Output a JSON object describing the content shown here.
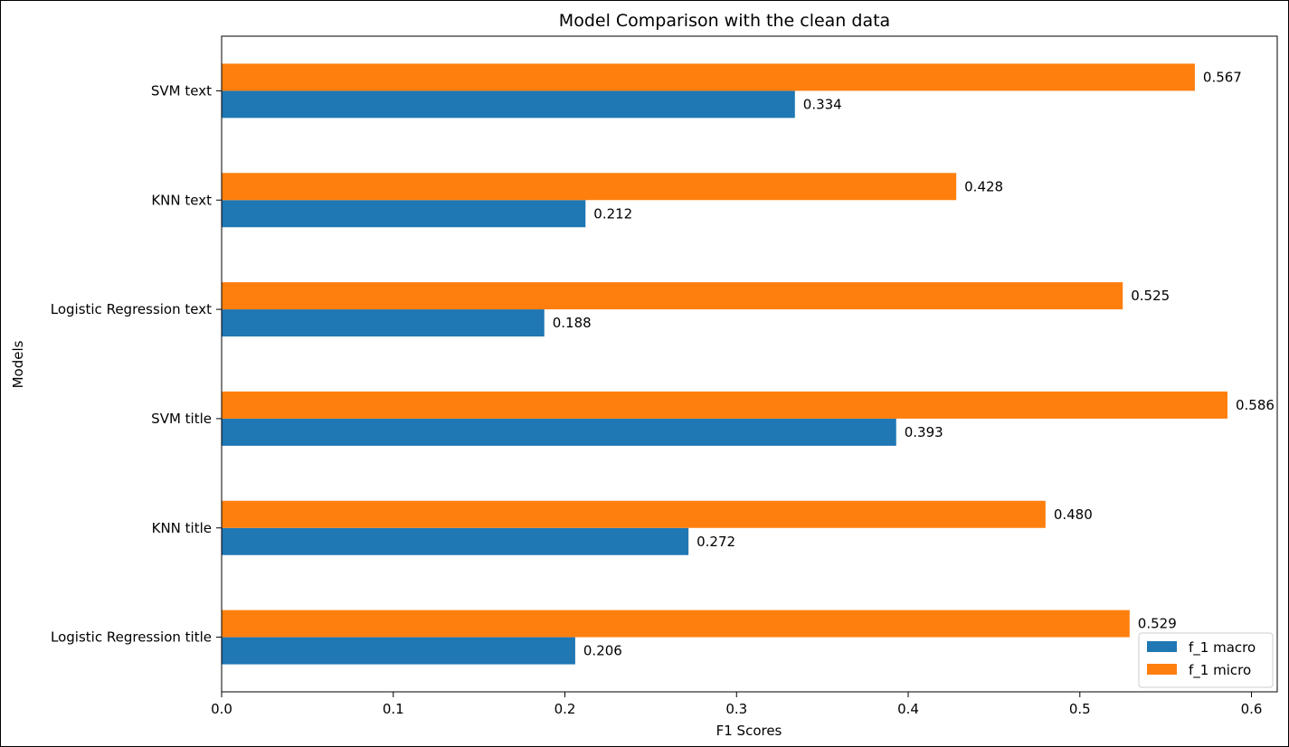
{
  "chart_data": {
    "type": "bar",
    "orientation": "horizontal",
    "title": "Model Comparison with the clean data",
    "xlabel": "F1 Scores",
    "ylabel": "Models",
    "categories": [
      "Logistic Regression title",
      "KNN title",
      "SVM title",
      "Logistic Regression text",
      "KNN text",
      "SVM text"
    ],
    "series": [
      {
        "name": "f_1 macro",
        "color": "#1f77b4",
        "values": [
          0.206,
          0.272,
          0.393,
          0.188,
          0.212,
          0.334
        ],
        "labels": [
          "0.206",
          "0.272",
          "0.393",
          "0.188",
          "0.212",
          "0.334"
        ]
      },
      {
        "name": "f_1 micro",
        "color": "#ff7f0e",
        "values": [
          0.529,
          0.48,
          0.586,
          0.525,
          0.428,
          0.567
        ],
        "labels": [
          "0.529",
          "0.480",
          "0.586",
          "0.525",
          "0.428",
          "0.567"
        ]
      }
    ],
    "xlim": [
      0.0,
      0.615
    ],
    "xticks": [
      0.0,
      0.1,
      0.2,
      0.3,
      0.4,
      0.5,
      0.6
    ],
    "xtick_labels": [
      "0.0",
      "0.1",
      "0.2",
      "0.3",
      "0.4",
      "0.5",
      "0.6"
    ],
    "grid": false,
    "legend_position": "lower-right"
  }
}
